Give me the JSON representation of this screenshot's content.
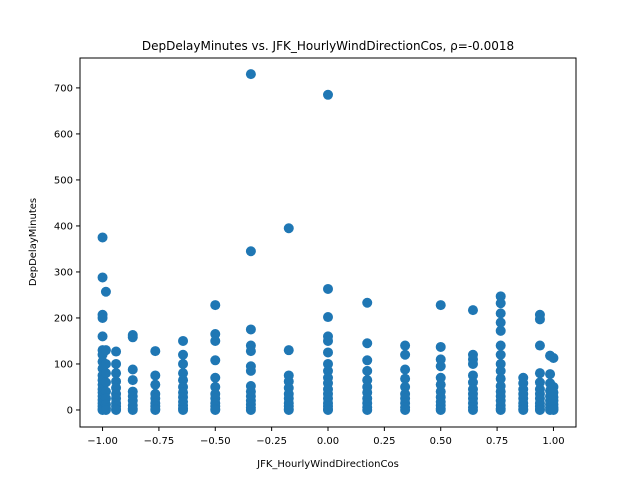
{
  "chart_data": {
    "type": "scatter",
    "title": "DepDelayMinutes vs. JFK_HourlyWindDirectionCos, ρ=-0.0018",
    "xlabel": "JFK_HourlyWindDirectionCos",
    "ylabel": "DepDelayMinutes",
    "xlim": [
      -1.1,
      1.1
    ],
    "ylim": [
      -37,
      765
    ],
    "xticks": [
      -1.0,
      -0.75,
      -0.5,
      -0.25,
      0.0,
      0.25,
      0.5,
      0.75,
      1.0
    ],
    "xtick_labels": [
      "−1.00",
      "−0.75",
      "−0.50",
      "−0.25",
      "0.00",
      "0.25",
      "0.50",
      "0.75",
      "1.00"
    ],
    "yticks": [
      0,
      100,
      200,
      300,
      400,
      500,
      600,
      700
    ],
    "ytick_labels": [
      "0",
      "100",
      "200",
      "300",
      "400",
      "500",
      "600",
      "700"
    ],
    "marker_color": "#1f77b4",
    "series": [
      {
        "name": "DepDelayMinutes",
        "points": [
          [
            -1.0,
            375
          ],
          [
            -1.0,
            288
          ],
          [
            -1.0,
            207
          ],
          [
            -1.0,
            200
          ],
          [
            -1.0,
            160
          ],
          [
            -1.0,
            130
          ],
          [
            -1.0,
            120
          ],
          [
            -1.0,
            105
          ],
          [
            -1.0,
            90
          ],
          [
            -1.0,
            75
          ],
          [
            -1.0,
            65
          ],
          [
            -1.0,
            55
          ],
          [
            -1.0,
            45
          ],
          [
            -1.0,
            38
          ],
          [
            -1.0,
            30
          ],
          [
            -1.0,
            22
          ],
          [
            -1.0,
            15
          ],
          [
            -1.0,
            8
          ],
          [
            -1.0,
            2
          ],
          [
            -1.0,
            0
          ],
          [
            -0.985,
            257
          ],
          [
            -0.985,
            130
          ],
          [
            -0.985,
            100
          ],
          [
            -0.985,
            80
          ],
          [
            -0.985,
            60
          ],
          [
            -0.985,
            40
          ],
          [
            -0.985,
            25
          ],
          [
            -0.985,
            12
          ],
          [
            -0.985,
            4
          ],
          [
            -0.985,
            0
          ],
          [
            -0.94,
            127
          ],
          [
            -0.94,
            100
          ],
          [
            -0.94,
            80
          ],
          [
            -0.94,
            62
          ],
          [
            -0.94,
            48
          ],
          [
            -0.94,
            35
          ],
          [
            -0.94,
            25
          ],
          [
            -0.94,
            15
          ],
          [
            -0.94,
            8
          ],
          [
            -0.94,
            2
          ],
          [
            -0.94,
            0
          ],
          [
            -0.866,
            163
          ],
          [
            -0.866,
            158
          ],
          [
            -0.866,
            88
          ],
          [
            -0.866,
            65
          ],
          [
            -0.866,
            40
          ],
          [
            -0.866,
            30
          ],
          [
            -0.866,
            20
          ],
          [
            -0.866,
            10
          ],
          [
            -0.866,
            3
          ],
          [
            -0.866,
            0
          ],
          [
            -0.766,
            128
          ],
          [
            -0.766,
            75
          ],
          [
            -0.766,
            55
          ],
          [
            -0.766,
            35
          ],
          [
            -0.766,
            25
          ],
          [
            -0.766,
            15
          ],
          [
            -0.766,
            8
          ],
          [
            -0.766,
            2
          ],
          [
            -0.766,
            0
          ],
          [
            -0.643,
            150
          ],
          [
            -0.643,
            120
          ],
          [
            -0.643,
            100
          ],
          [
            -0.643,
            80
          ],
          [
            -0.643,
            65
          ],
          [
            -0.643,
            50
          ],
          [
            -0.643,
            38
          ],
          [
            -0.643,
            28
          ],
          [
            -0.643,
            18
          ],
          [
            -0.643,
            10
          ],
          [
            -0.643,
            4
          ],
          [
            -0.643,
            0
          ],
          [
            -0.5,
            228
          ],
          [
            -0.5,
            165
          ],
          [
            -0.5,
            150
          ],
          [
            -0.5,
            108
          ],
          [
            -0.5,
            70
          ],
          [
            -0.5,
            50
          ],
          [
            -0.5,
            35
          ],
          [
            -0.5,
            25
          ],
          [
            -0.5,
            15
          ],
          [
            -0.5,
            8
          ],
          [
            -0.5,
            2
          ],
          [
            -0.5,
            0
          ],
          [
            -0.342,
            730
          ],
          [
            -0.342,
            345
          ],
          [
            -0.342,
            175
          ],
          [
            -0.342,
            140
          ],
          [
            -0.342,
            128
          ],
          [
            -0.342,
            95
          ],
          [
            -0.342,
            85
          ],
          [
            -0.342,
            52
          ],
          [
            -0.342,
            40
          ],
          [
            -0.342,
            30
          ],
          [
            -0.342,
            20
          ],
          [
            -0.342,
            12
          ],
          [
            -0.342,
            5
          ],
          [
            -0.342,
            0
          ],
          [
            -0.174,
            395
          ],
          [
            -0.174,
            130
          ],
          [
            -0.174,
            75
          ],
          [
            -0.174,
            62
          ],
          [
            -0.174,
            48
          ],
          [
            -0.174,
            35
          ],
          [
            -0.174,
            25
          ],
          [
            -0.174,
            15
          ],
          [
            -0.174,
            8
          ],
          [
            -0.174,
            2
          ],
          [
            -0.174,
            0
          ],
          [
            0.0,
            685
          ],
          [
            0.0,
            263
          ],
          [
            0.0,
            202
          ],
          [
            0.0,
            160
          ],
          [
            0.0,
            150
          ],
          [
            0.0,
            125
          ],
          [
            0.0,
            100
          ],
          [
            0.0,
            85
          ],
          [
            0.0,
            70
          ],
          [
            0.0,
            58
          ],
          [
            0.0,
            45
          ],
          [
            0.0,
            35
          ],
          [
            0.0,
            25
          ],
          [
            0.0,
            15
          ],
          [
            0.0,
            8
          ],
          [
            0.0,
            2
          ],
          [
            0.0,
            0
          ],
          [
            0.174,
            233
          ],
          [
            0.174,
            145
          ],
          [
            0.174,
            108
          ],
          [
            0.174,
            85
          ],
          [
            0.174,
            65
          ],
          [
            0.174,
            50
          ],
          [
            0.174,
            38
          ],
          [
            0.174,
            25
          ],
          [
            0.174,
            15
          ],
          [
            0.174,
            6
          ],
          [
            0.174,
            0
          ],
          [
            0.342,
            140
          ],
          [
            0.342,
            120
          ],
          [
            0.342,
            88
          ],
          [
            0.342,
            68
          ],
          [
            0.342,
            50
          ],
          [
            0.342,
            35
          ],
          [
            0.342,
            25
          ],
          [
            0.342,
            15
          ],
          [
            0.342,
            6
          ],
          [
            0.342,
            0
          ],
          [
            0.5,
            228
          ],
          [
            0.5,
            137
          ],
          [
            0.5,
            110
          ],
          [
            0.5,
            95
          ],
          [
            0.5,
            70
          ],
          [
            0.5,
            55
          ],
          [
            0.5,
            40
          ],
          [
            0.5,
            28
          ],
          [
            0.5,
            18
          ],
          [
            0.5,
            10
          ],
          [
            0.5,
            3
          ],
          [
            0.5,
            0
          ],
          [
            0.643,
            217
          ],
          [
            0.643,
            120
          ],
          [
            0.643,
            110
          ],
          [
            0.643,
            100
          ],
          [
            0.643,
            75
          ],
          [
            0.643,
            60
          ],
          [
            0.643,
            45
          ],
          [
            0.643,
            35
          ],
          [
            0.643,
            25
          ],
          [
            0.643,
            15
          ],
          [
            0.643,
            6
          ],
          [
            0.643,
            0
          ],
          [
            0.766,
            247
          ],
          [
            0.766,
            232
          ],
          [
            0.766,
            210
          ],
          [
            0.766,
            190
          ],
          [
            0.766,
            172
          ],
          [
            0.766,
            140
          ],
          [
            0.766,
            120
          ],
          [
            0.766,
            100
          ],
          [
            0.766,
            85
          ],
          [
            0.766,
            68
          ],
          [
            0.766,
            52
          ],
          [
            0.766,
            40
          ],
          [
            0.766,
            30
          ],
          [
            0.766,
            20
          ],
          [
            0.766,
            10
          ],
          [
            0.766,
            3
          ],
          [
            0.766,
            0
          ],
          [
            0.866,
            70
          ],
          [
            0.866,
            58
          ],
          [
            0.866,
            45
          ],
          [
            0.866,
            35
          ],
          [
            0.866,
            25
          ],
          [
            0.866,
            15
          ],
          [
            0.866,
            8
          ],
          [
            0.866,
            2
          ],
          [
            0.866,
            0
          ],
          [
            0.94,
            207
          ],
          [
            0.94,
            197
          ],
          [
            0.94,
            140
          ],
          [
            0.94,
            80
          ],
          [
            0.94,
            60
          ],
          [
            0.94,
            45
          ],
          [
            0.94,
            35
          ],
          [
            0.94,
            25
          ],
          [
            0.94,
            15
          ],
          [
            0.94,
            8
          ],
          [
            0.94,
            2
          ],
          [
            0.94,
            0
          ],
          [
            0.985,
            118
          ],
          [
            0.985,
            78
          ],
          [
            0.985,
            58
          ],
          [
            0.985,
            42
          ],
          [
            0.985,
            30
          ],
          [
            0.985,
            20
          ],
          [
            0.985,
            12
          ],
          [
            0.985,
            5
          ],
          [
            0.985,
            0
          ],
          [
            1.0,
            113
          ],
          [
            1.0,
            50
          ],
          [
            1.0,
            38
          ],
          [
            1.0,
            28
          ],
          [
            1.0,
            20
          ],
          [
            1.0,
            12
          ],
          [
            1.0,
            6
          ],
          [
            1.0,
            2
          ],
          [
            1.0,
            0
          ]
        ]
      }
    ]
  }
}
